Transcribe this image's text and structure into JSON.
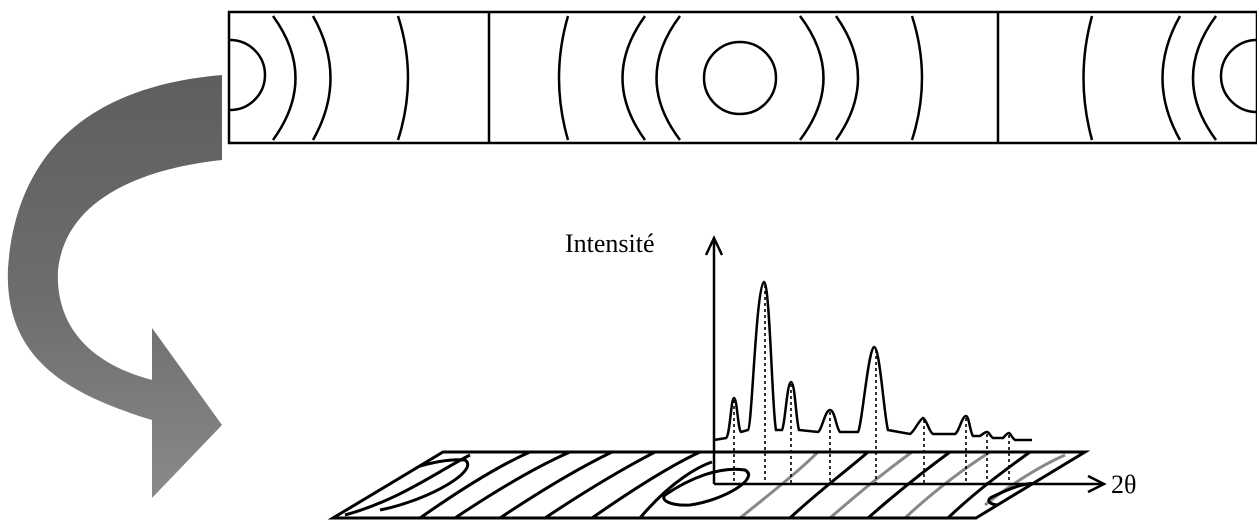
{
  "diagram": {
    "y_axis_label": "Intensité",
    "x_axis_label": "2θ"
  },
  "colors": {
    "stroke": "#000000",
    "arrow_dark": "#5f5f5f",
    "arrow_light": "#8a8a8a",
    "fringe_grey": "#8c8c8c",
    "background": "#ffffff"
  }
}
